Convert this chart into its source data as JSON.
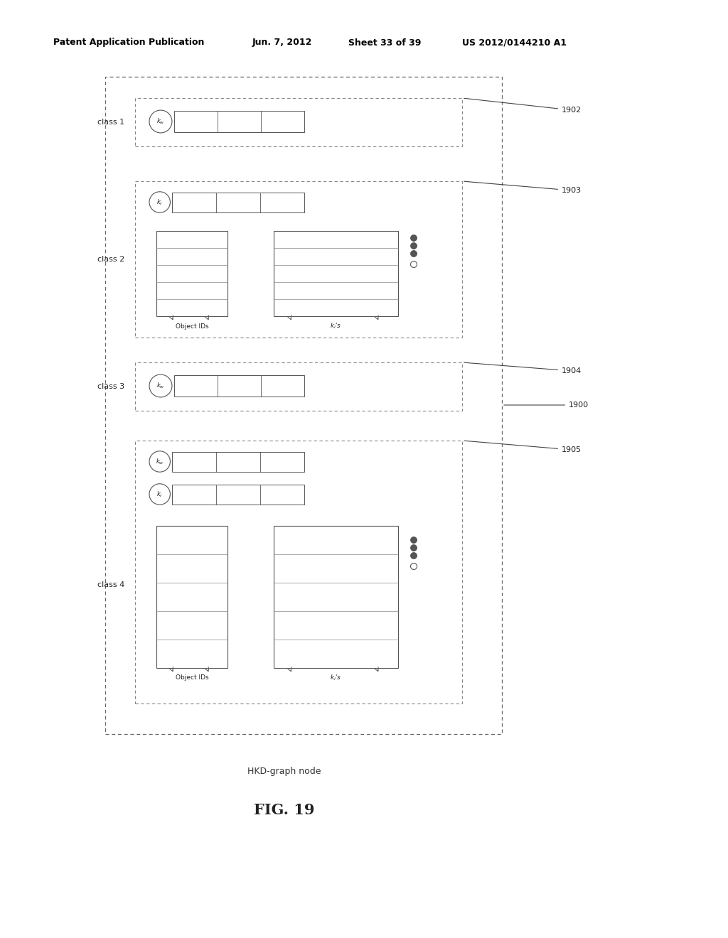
{
  "bg_color": "#ffffff",
  "header_text": "Patent Application Publication",
  "header_date": "Jun. 7, 2012",
  "header_sheet": "Sheet 33 of 39",
  "header_patent": "US 2012/0144210 A1",
  "caption": "HKD-graph node",
  "fig_label": "FIG. 19",
  "ref_1900": "1900",
  "ref_1902": "1902",
  "ref_1903": "1903",
  "ref_1904": "1904",
  "ref_1905": "1905"
}
